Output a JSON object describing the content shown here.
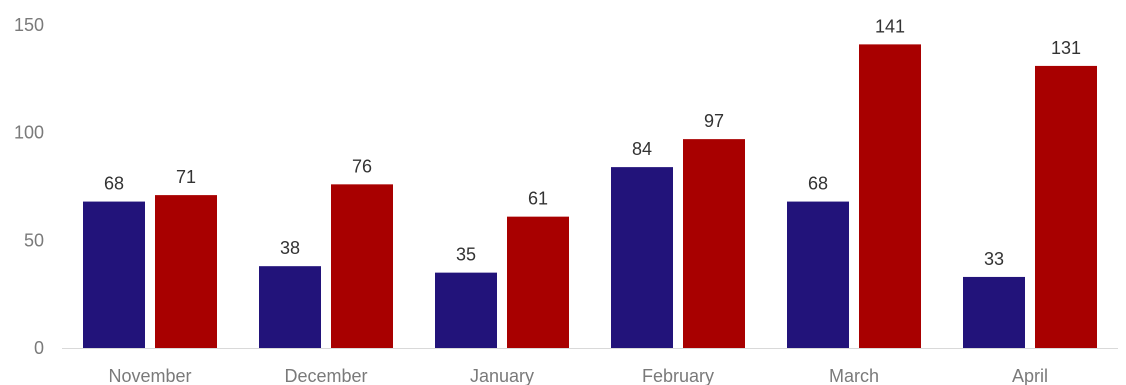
{
  "chart_data": {
    "type": "bar",
    "categories": [
      "November",
      "December",
      "January",
      "February",
      "March",
      "April"
    ],
    "series": [
      {
        "values": [
          68,
          38,
          35,
          84,
          68,
          33
        ],
        "color": "#22137A"
      },
      {
        "values": [
          71,
          76,
          61,
          97,
          141,
          131
        ],
        "color": "#A80000"
      }
    ],
    "yticks": [
      0,
      50,
      100,
      150
    ],
    "ylim": [
      0,
      150
    ],
    "grid": false,
    "data_labels": true
  }
}
